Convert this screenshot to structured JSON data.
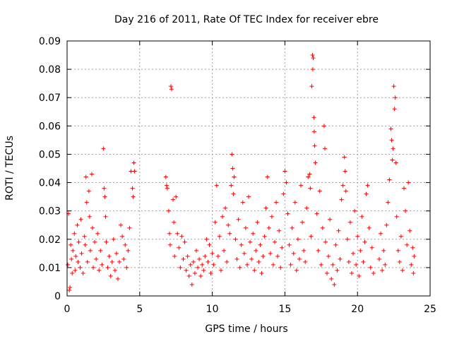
{
  "chart_data": {
    "type": "scatter",
    "title": "Day 216 of 2011, Rate Of TEC Index for receiver ebre",
    "xlabel": "GPS time / hours",
    "ylabel": "ROTI / TECUs",
    "xlim": [
      0,
      25
    ],
    "ylim": [
      0,
      0.09
    ],
    "xticks": [
      0,
      5,
      10,
      15,
      20,
      25
    ],
    "xtick_labels": [
      "0",
      "5",
      "10",
      "15",
      "20",
      "25"
    ],
    "yticks": [
      0,
      0.01,
      0.02,
      0.03,
      0.04,
      0.05,
      0.06,
      0.07,
      0.08,
      0.09
    ],
    "ytick_labels": [
      "0",
      "0.01",
      "0.02",
      "0.03",
      "0.04",
      "0.05",
      "0.06",
      "0.07",
      "0.08",
      "0.09"
    ],
    "grid": true,
    "marker": "+",
    "color": "#ff0000",
    "series": [
      {
        "name": "ROTI",
        "points": [
          [
            0.05,
            0.011
          ],
          [
            0.1,
            0.029
          ],
          [
            0.15,
            0.002
          ],
          [
            0.2,
            0.003
          ],
          [
            0.25,
            0.018
          ],
          [
            0.3,
            0.013
          ],
          [
            0.35,
            0.008
          ],
          [
            0.4,
            0.016
          ],
          [
            0.5,
            0.022
          ],
          [
            0.55,
            0.009
          ],
          [
            0.6,
            0.014
          ],
          [
            0.7,
            0.025
          ],
          [
            0.75,
            0.012
          ],
          [
            0.8,
            0.019
          ],
          [
            0.9,
            0.01
          ],
          [
            0.95,
            0.027
          ],
          [
            1.0,
            0.015
          ],
          [
            1.1,
            0.008
          ],
          [
            1.2,
            0.021
          ],
          [
            1.25,
            0.018
          ],
          [
            1.3,
            0.042
          ],
          [
            1.35,
            0.033
          ],
          [
            1.4,
            0.012
          ],
          [
            1.5,
            0.037
          ],
          [
            1.55,
            0.028
          ],
          [
            1.6,
            0.016
          ],
          [
            1.7,
            0.043
          ],
          [
            1.75,
            0.024
          ],
          [
            1.8,
            0.01
          ],
          [
            1.9,
            0.019
          ],
          [
            2.0,
            0.013
          ],
          [
            2.1,
            0.022
          ],
          [
            2.2,
            0.009
          ],
          [
            2.3,
            0.016
          ],
          [
            2.4,
            0.011
          ],
          [
            2.5,
            0.052
          ],
          [
            2.55,
            0.038
          ],
          [
            2.6,
            0.035
          ],
          [
            2.65,
            0.028
          ],
          [
            2.7,
            0.019
          ],
          [
            2.8,
            0.01
          ],
          [
            2.9,
            0.014
          ],
          [
            3.0,
            0.007
          ],
          [
            3.1,
            0.012
          ],
          [
            3.2,
            0.02
          ],
          [
            3.3,
            0.009
          ],
          [
            3.4,
            0.015
          ],
          [
            3.5,
            0.006
          ],
          [
            3.6,
            0.012
          ],
          [
            3.7,
            0.025
          ],
          [
            3.8,
            0.021
          ],
          [
            3.9,
            0.013
          ],
          [
            4.0,
            0.018
          ],
          [
            4.1,
            0.01
          ],
          [
            4.2,
            0.016
          ],
          [
            4.3,
            0.024
          ],
          [
            4.4,
            0.044
          ],
          [
            4.5,
            0.038
          ],
          [
            4.55,
            0.035
          ],
          [
            4.6,
            0.047
          ],
          [
            4.65,
            0.044
          ],
          [
            6.8,
            0.042
          ],
          [
            6.85,
            0.039
          ],
          [
            6.9,
            0.038
          ],
          [
            7.0,
            0.03
          ],
          [
            7.05,
            0.022
          ],
          [
            7.1,
            0.018
          ],
          [
            7.15,
            0.074
          ],
          [
            7.2,
            0.073
          ],
          [
            7.3,
            0.034
          ],
          [
            7.35,
            0.026
          ],
          [
            7.4,
            0.014
          ],
          [
            7.5,
            0.035
          ],
          [
            7.6,
            0.022
          ],
          [
            7.7,
            0.017
          ],
          [
            7.8,
            0.01
          ],
          [
            7.9,
            0.021
          ],
          [
            8.0,
            0.013
          ],
          [
            8.1,
            0.019
          ],
          [
            8.2,
            0.009
          ],
          [
            8.3,
            0.014
          ],
          [
            8.4,
            0.007
          ],
          [
            8.5,
            0.011
          ],
          [
            8.6,
            0.004
          ],
          [
            8.7,
            0.012
          ],
          [
            8.8,
            0.008
          ],
          [
            8.9,
            0.016
          ],
          [
            9.0,
            0.01
          ],
          [
            9.1,
            0.013
          ],
          [
            9.2,
            0.007
          ],
          [
            9.3,
            0.011
          ],
          [
            9.4,
            0.009
          ],
          [
            9.5,
            0.014
          ],
          [
            9.6,
            0.02
          ],
          [
            9.7,
            0.012
          ],
          [
            9.8,
            0.018
          ],
          [
            9.9,
            0.008
          ],
          [
            10.0,
            0.015
          ],
          [
            10.1,
            0.011
          ],
          [
            10.2,
            0.026
          ],
          [
            10.3,
            0.039
          ],
          [
            10.4,
            0.014
          ],
          [
            10.5,
            0.021
          ],
          [
            10.6,
            0.009
          ],
          [
            10.7,
            0.028
          ],
          [
            10.8,
            0.016
          ],
          [
            10.9,
            0.031
          ],
          [
            11.0,
            0.012
          ],
          [
            11.1,
            0.025
          ],
          [
            11.2,
            0.022
          ],
          [
            11.3,
            0.039
          ],
          [
            11.35,
            0.05
          ],
          [
            11.4,
            0.045
          ],
          [
            11.45,
            0.036
          ],
          [
            11.5,
            0.042
          ],
          [
            11.6,
            0.02
          ],
          [
            11.7,
            0.013
          ],
          [
            11.8,
            0.027
          ],
          [
            11.9,
            0.01
          ],
          [
            12.0,
            0.018
          ],
          [
            12.1,
            0.033
          ],
          [
            12.2,
            0.015
          ],
          [
            12.3,
            0.024
          ],
          [
            12.4,
            0.011
          ],
          [
            12.5,
            0.035
          ],
          [
            12.6,
            0.019
          ],
          [
            12.7,
            0.013
          ],
          [
            12.8,
            0.022
          ],
          [
            12.9,
            0.009
          ],
          [
            13.0,
            0.016
          ],
          [
            13.1,
            0.026
          ],
          [
            13.2,
            0.012
          ],
          [
            13.3,
            0.018
          ],
          [
            13.4,
            0.008
          ],
          [
            13.5,
            0.014
          ],
          [
            13.6,
            0.021
          ],
          [
            13.7,
            0.031
          ],
          [
            13.8,
            0.042
          ],
          [
            13.9,
            0.024
          ],
          [
            14.0,
            0.015
          ],
          [
            14.1,
            0.028
          ],
          [
            14.2,
            0.011
          ],
          [
            14.3,
            0.019
          ],
          [
            14.4,
            0.033
          ],
          [
            14.5,
            0.014
          ],
          [
            14.6,
            0.023
          ],
          [
            14.7,
            0.01
          ],
          [
            14.8,
            0.017
          ],
          [
            14.9,
            0.036
          ],
          [
            15.0,
            0.044
          ],
          [
            15.1,
            0.04
          ],
          [
            15.2,
            0.029
          ],
          [
            15.3,
            0.018
          ],
          [
            15.4,
            0.011
          ],
          [
            15.5,
            0.024
          ],
          [
            15.6,
            0.015
          ],
          [
            15.7,
            0.033
          ],
          [
            15.8,
            0.009
          ],
          [
            15.9,
            0.02
          ],
          [
            16.0,
            0.013
          ],
          [
            16.1,
            0.039
          ],
          [
            16.2,
            0.026
          ],
          [
            16.3,
            0.016
          ],
          [
            16.4,
            0.012
          ],
          [
            16.5,
            0.031
          ],
          [
            16.6,
            0.042
          ],
          [
            16.7,
            0.043
          ],
          [
            16.75,
            0.038
          ],
          [
            16.8,
            0.021
          ],
          [
            16.85,
            0.074
          ],
          [
            16.9,
            0.085
          ],
          [
            16.92,
            0.08
          ],
          [
            16.95,
            0.084
          ],
          [
            17.0,
            0.063
          ],
          [
            17.02,
            0.058
          ],
          [
            17.05,
            0.053
          ],
          [
            17.1,
            0.047
          ],
          [
            17.2,
            0.029
          ],
          [
            17.3,
            0.016
          ],
          [
            17.4,
            0.037
          ],
          [
            17.5,
            0.011
          ],
          [
            17.6,
            0.024
          ],
          [
            17.7,
            0.06
          ],
          [
            17.75,
            0.052
          ],
          [
            17.8,
            0.019
          ],
          [
            17.9,
            0.008
          ],
          [
            18.0,
            0.014
          ],
          [
            18.1,
            0.027
          ],
          [
            18.2,
            0.006
          ],
          [
            18.3,
            0.011
          ],
          [
            18.4,
            0.004
          ],
          [
            18.5,
            0.018
          ],
          [
            18.6,
            0.009
          ],
          [
            18.7,
            0.023
          ],
          [
            18.8,
            0.013
          ],
          [
            18.9,
            0.034
          ],
          [
            19.0,
            0.039
          ],
          [
            19.1,
            0.049
          ],
          [
            19.15,
            0.044
          ],
          [
            19.2,
            0.037
          ],
          [
            19.3,
            0.02
          ],
          [
            19.4,
            0.012
          ],
          [
            19.5,
            0.026
          ],
          [
            19.6,
            0.008
          ],
          [
            19.7,
            0.015
          ],
          [
            19.8,
            0.03
          ],
          [
            19.9,
            0.011
          ],
          [
            20.0,
            0.021
          ],
          [
            20.1,
            0.007
          ],
          [
            20.2,
            0.016
          ],
          [
            20.3,
            0.028
          ],
          [
            20.4,
            0.012
          ],
          [
            20.5,
            0.019
          ],
          [
            20.6,
            0.036
          ],
          [
            20.7,
            0.039
          ],
          [
            20.8,
            0.024
          ],
          [
            20.9,
            0.01
          ],
          [
            21.0,
            0.017
          ],
          [
            21.1,
            0.008
          ],
          [
            21.5,
            0.013
          ],
          [
            21.6,
            0.022
          ],
          [
            21.7,
            0.009
          ],
          [
            21.8,
            0.016
          ],
          [
            21.9,
            0.011
          ],
          [
            22.0,
            0.025
          ],
          [
            22.1,
            0.033
          ],
          [
            22.2,
            0.041
          ],
          [
            22.3,
            0.059
          ],
          [
            22.35,
            0.055
          ],
          [
            22.4,
            0.048
          ],
          [
            22.45,
            0.052
          ],
          [
            22.5,
            0.074
          ],
          [
            22.55,
            0.066
          ],
          [
            22.6,
            0.07
          ],
          [
            22.65,
            0.047
          ],
          [
            22.7,
            0.028
          ],
          [
            22.8,
            0.016
          ],
          [
            22.9,
            0.012
          ],
          [
            23.0,
            0.021
          ],
          [
            23.1,
            0.009
          ],
          [
            23.2,
            0.038
          ],
          [
            23.3,
            0.03
          ],
          [
            23.4,
            0.018
          ],
          [
            23.5,
            0.04
          ],
          [
            23.6,
            0.023
          ],
          [
            23.7,
            0.011
          ],
          [
            23.8,
            0.017
          ],
          [
            23.85,
            0.008
          ],
          [
            23.9,
            0.014
          ]
        ]
      }
    ]
  }
}
